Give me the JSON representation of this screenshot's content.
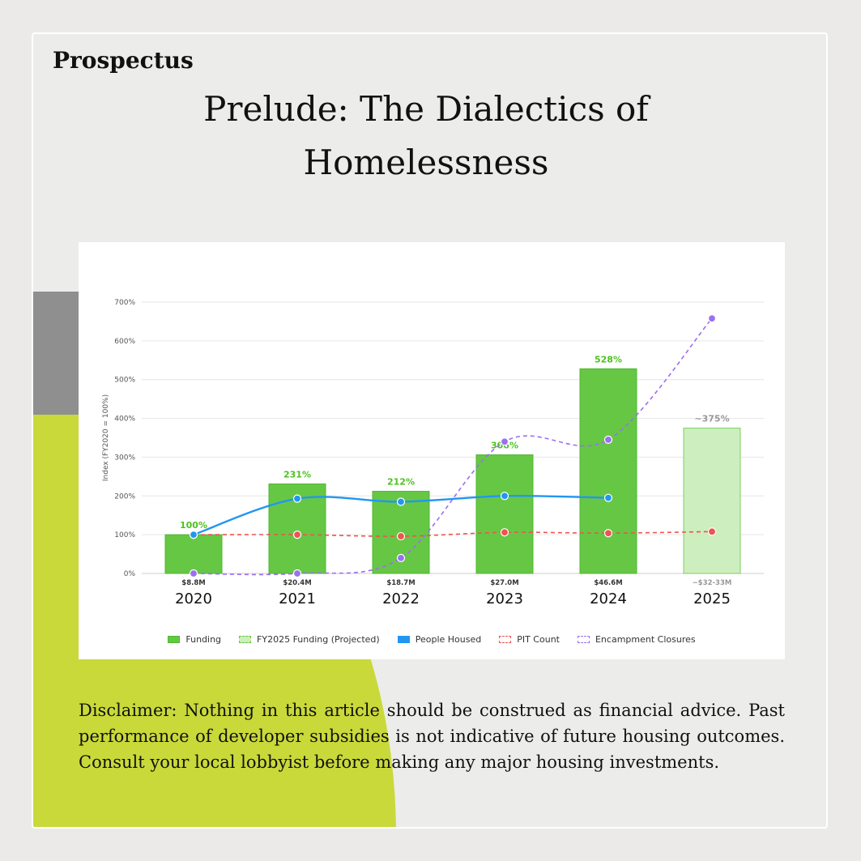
{
  "page": {
    "brand": "Prospectus",
    "title": "Prelude: The Dialectics of Homelessness",
    "disclaimer": "Disclaimer: Nothing in this article should be construed as financial advice. Past performance of developer subsidies is not indicative of future housing outcomes. Consult your local lobbyist before making any major housing investments."
  },
  "colors": {
    "funding": "#66c744",
    "funding_projected": "#cdeebe",
    "people_housed": "#2196f3",
    "pit_count": "#ef5350",
    "encampment_closures": "#9c6ff0"
  },
  "chart_data": {
    "type": "bar",
    "title": "",
    "xlabel": "",
    "ylabel": "Index (FY2020 = 100%)",
    "ylim": [
      0,
      700
    ],
    "yticks": [
      "0%",
      "100%",
      "200%",
      "300%",
      "400%",
      "500%",
      "600%",
      "700%"
    ],
    "grid": true,
    "legend_position": "bottom",
    "categories": [
      "2020",
      "2021",
      "2022",
      "2023",
      "2024",
      "2025"
    ],
    "series": [
      {
        "name": "Funding",
        "kind": "bar",
        "values": [
          100,
          231,
          212,
          306,
          528,
          null
        ],
        "value_labels": [
          "100%",
          "231%",
          "212%",
          "306%",
          "528%",
          ""
        ],
        "amount_labels": [
          "$8.8M",
          "$20.4M",
          "$18.7M",
          "$27.0M",
          "$46.6M",
          ""
        ]
      },
      {
        "name": "FY2025 Funding (Projected)",
        "kind": "bar",
        "values": [
          null,
          null,
          null,
          null,
          null,
          375
        ],
        "value_labels": [
          "",
          "",
          "",
          "",
          "",
          "~375%"
        ],
        "amount_labels": [
          "",
          "",
          "",
          "",
          "",
          "~$32-33M"
        ]
      },
      {
        "name": "People Housed",
        "kind": "line",
        "values": [
          100,
          193,
          185,
          200,
          195,
          null
        ]
      },
      {
        "name": "PIT Count",
        "kind": "line",
        "values": [
          100,
          100,
          96,
          106,
          104,
          108
        ]
      },
      {
        "name": "Encampment Closures",
        "kind": "line",
        "values": [
          0,
          0,
          40,
          340,
          345,
          658
        ]
      }
    ]
  }
}
